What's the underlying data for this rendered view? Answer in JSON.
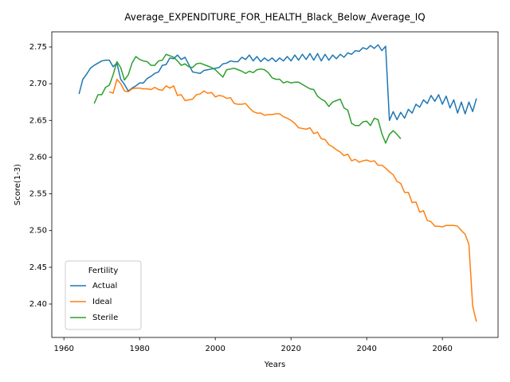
{
  "chart_data": {
    "type": "line",
    "title": "Average_EXPENDITURE_FOR_HEALTH_Black_Below_Average_IQ",
    "x_label": "Years",
    "y_label": "Score(1-3)",
    "legend_title": "Fertility",
    "legend": "lower left",
    "xlim": [
      1956.8,
      2074.7
    ],
    "ylim": [
      2.3545,
      2.7706
    ],
    "xticks": [
      1960,
      1980,
      2000,
      2020,
      2040,
      2060
    ],
    "yticks": [
      {
        "value": 2.4,
        "label": "2.40"
      },
      {
        "value": 2.45,
        "label": "2.45"
      },
      {
        "value": 2.5,
        "label": "2.50"
      },
      {
        "value": 2.55,
        "label": "2.55"
      },
      {
        "value": 2.6,
        "label": "2.60"
      },
      {
        "value": 2.65,
        "label": "2.65"
      },
      {
        "value": 2.7,
        "label": "2.70"
      },
      {
        "value": 2.75,
        "label": "2.75"
      }
    ],
    "x": [
      1964,
      1965,
      1966,
      1967,
      1968,
      1969,
      1970,
      1971,
      1972,
      1973,
      1974,
      1975,
      1976,
      1977,
      1978,
      1979,
      1980,
      1981,
      1982,
      1983,
      1984,
      1985,
      1986,
      1987,
      1988,
      1989,
      1990,
      1991,
      1992,
      1993,
      1994,
      1995,
      1996,
      1997,
      1998,
      1999,
      2000,
      2001,
      2002,
      2003,
      2004,
      2005,
      2006,
      2007,
      2008,
      2009,
      2010,
      2011,
      2012,
      2013,
      2014,
      2015,
      2016,
      2017,
      2018,
      2019,
      2020,
      2021,
      2022,
      2023,
      2024,
      2025,
      2026,
      2027,
      2028,
      2029,
      2030,
      2031,
      2032,
      2033,
      2034,
      2035,
      2036,
      2037,
      2038,
      2039,
      2040,
      2041,
      2042,
      2043,
      2044,
      2045,
      2046,
      2047,
      2048,
      2049,
      2050,
      2051,
      2052,
      2053,
      2054,
      2055,
      2056,
      2057,
      2058,
      2059,
      2060,
      2061,
      2062,
      2063,
      2064,
      2065,
      2066,
      2067,
      2068,
      2069
    ],
    "series": [
      {
        "name": "Actual",
        "color": "#1f77b4",
        "values": [
          2.686,
          2.706,
          2.713,
          2.721,
          2.725,
          2.728,
          2.731,
          2.732,
          2.732,
          2.723,
          2.728,
          2.706,
          2.699,
          2.69,
          2.694,
          2.697,
          2.701,
          2.701,
          2.707,
          2.71,
          2.714,
          2.716,
          2.725,
          2.726,
          2.735,
          2.734,
          2.739,
          2.733,
          2.736,
          2.726,
          2.716,
          2.715,
          2.714,
          2.718,
          2.719,
          2.72,
          2.721,
          2.722,
          2.727,
          2.728,
          2.731,
          2.73,
          2.73,
          2.736,
          2.733,
          2.739,
          2.731,
          2.737,
          2.73,
          2.735,
          2.731,
          2.735,
          2.73,
          2.735,
          2.731,
          2.737,
          2.731,
          2.739,
          2.732,
          2.74,
          2.733,
          2.741,
          2.732,
          2.741,
          2.731,
          2.74,
          2.732,
          2.739,
          2.734,
          2.74,
          2.736,
          2.742,
          2.74,
          2.745,
          2.744,
          2.749,
          2.747,
          2.752,
          2.748,
          2.753,
          2.745,
          2.751,
          2.65,
          2.662,
          2.651,
          2.661,
          2.653,
          2.665,
          2.66,
          2.672,
          2.668,
          2.678,
          2.673,
          2.684,
          2.676,
          2.685,
          2.672,
          2.683,
          2.667,
          2.678,
          2.66,
          2.675,
          2.659,
          2.675,
          2.662,
          2.68
        ]
      },
      {
        "name": "Ideal",
        "color": "#ff7f0e",
        "values": [
          null,
          null,
          null,
          null,
          null,
          null,
          null,
          null,
          2.689,
          2.687,
          2.706,
          2.7,
          2.69,
          2.689,
          2.693,
          2.694,
          2.694,
          2.693,
          2.693,
          2.692,
          2.695,
          2.692,
          2.691,
          2.697,
          2.694,
          2.697,
          2.684,
          2.685,
          2.677,
          2.678,
          2.679,
          2.685,
          2.686,
          2.69,
          2.687,
          2.688,
          2.682,
          2.684,
          2.683,
          2.68,
          2.681,
          2.673,
          2.672,
          2.672,
          2.673,
          2.667,
          2.662,
          2.66,
          2.66,
          2.657,
          2.658,
          2.658,
          2.659,
          2.659,
          2.655,
          2.653,
          2.65,
          2.646,
          2.64,
          2.639,
          2.638,
          2.64,
          2.632,
          2.634,
          2.625,
          2.624,
          2.617,
          2.614,
          2.61,
          2.607,
          2.602,
          2.604,
          2.595,
          2.597,
          2.593,
          2.595,
          2.596,
          2.594,
          2.595,
          2.589,
          2.589,
          2.585,
          2.58,
          2.576,
          2.567,
          2.564,
          2.552,
          2.552,
          2.538,
          2.539,
          2.525,
          2.527,
          2.514,
          2.512,
          2.506,
          2.506,
          2.505,
          2.507,
          2.507,
          2.507,
          2.506,
          2.5,
          2.495,
          2.481,
          2.397,
          2.376
        ]
      },
      {
        "name": "Sterile",
        "color": "#2ca02c",
        "values": [
          null,
          null,
          null,
          null,
          2.673,
          2.685,
          2.685,
          2.695,
          2.698,
          2.712,
          2.73,
          2.722,
          2.705,
          2.712,
          2.728,
          2.737,
          2.733,
          2.731,
          2.73,
          2.725,
          2.725,
          2.731,
          2.732,
          2.74,
          2.738,
          2.736,
          2.731,
          2.725,
          2.727,
          2.723,
          2.722,
          2.727,
          2.728,
          2.726,
          2.724,
          2.722,
          2.719,
          2.714,
          2.709,
          2.719,
          2.72,
          2.721,
          2.719,
          2.717,
          2.714,
          2.717,
          2.715,
          2.719,
          2.72,
          2.719,
          2.715,
          2.708,
          2.706,
          2.706,
          2.701,
          2.703,
          2.701,
          2.702,
          2.702,
          2.699,
          2.696,
          2.693,
          2.692,
          2.683,
          2.679,
          2.676,
          2.669,
          2.675,
          2.677,
          2.679,
          2.667,
          2.664,
          2.646,
          2.643,
          2.643,
          2.648,
          2.649,
          2.643,
          2.653,
          2.651,
          2.632,
          2.619,
          2.631,
          2.636,
          2.631,
          2.625,
          null,
          null,
          null,
          null,
          null,
          null,
          null,
          null,
          null,
          null,
          null,
          null,
          null,
          null,
          null,
          null,
          null,
          null,
          null,
          null
        ]
      }
    ]
  }
}
